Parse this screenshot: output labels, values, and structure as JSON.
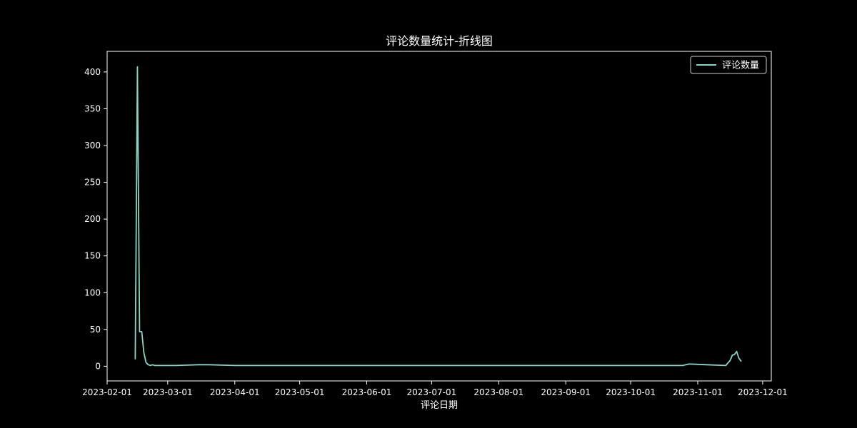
{
  "chart_data": {
    "type": "line",
    "title": "评论数量统计-折线图",
    "xlabel": "评论日期",
    "ylabel": "",
    "legend": {
      "placement": "top-right",
      "entries": [
        "评论数量"
      ]
    },
    "grid": false,
    "x_range": [
      "2023-02-01",
      "2023-12-05"
    ],
    "ylim": [
      -20,
      428
    ],
    "x_ticks": [
      "2023-02-01",
      "2023-03-01",
      "2023-04-01",
      "2023-05-01",
      "2023-06-01",
      "2023-07-01",
      "2023-08-01",
      "2023-09-01",
      "2023-10-01",
      "2023-11-01",
      "2023-12-01"
    ],
    "y_ticks": [
      0,
      50,
      100,
      150,
      200,
      250,
      300,
      350,
      400
    ],
    "series": [
      {
        "name": "评论数量",
        "color": "#8dd3c7",
        "x": [
          "2023-02-14",
          "2023-02-15",
          "2023-02-16",
          "2023-02-17",
          "2023-02-18",
          "2023-02-19",
          "2023-02-20",
          "2023-02-21",
          "2023-02-22",
          "2023-02-23",
          "2023-03-05",
          "2023-03-15",
          "2023-03-20",
          "2023-04-01",
          "2023-05-01",
          "2023-06-01",
          "2023-07-01",
          "2023-08-01",
          "2023-09-01",
          "2023-10-01",
          "2023-10-25",
          "2023-10-28",
          "2023-11-05",
          "2023-11-14",
          "2023-11-16",
          "2023-11-17",
          "2023-11-18",
          "2023-11-19",
          "2023-11-20",
          "2023-11-21"
        ],
        "values": [
          10,
          407,
          47,
          47,
          18,
          5,
          2,
          1,
          2,
          1,
          1,
          2,
          2,
          1,
          1,
          1,
          1,
          1,
          1,
          1,
          1,
          3,
          2,
          1,
          8,
          15,
          16,
          20,
          11,
          7
        ]
      }
    ]
  }
}
